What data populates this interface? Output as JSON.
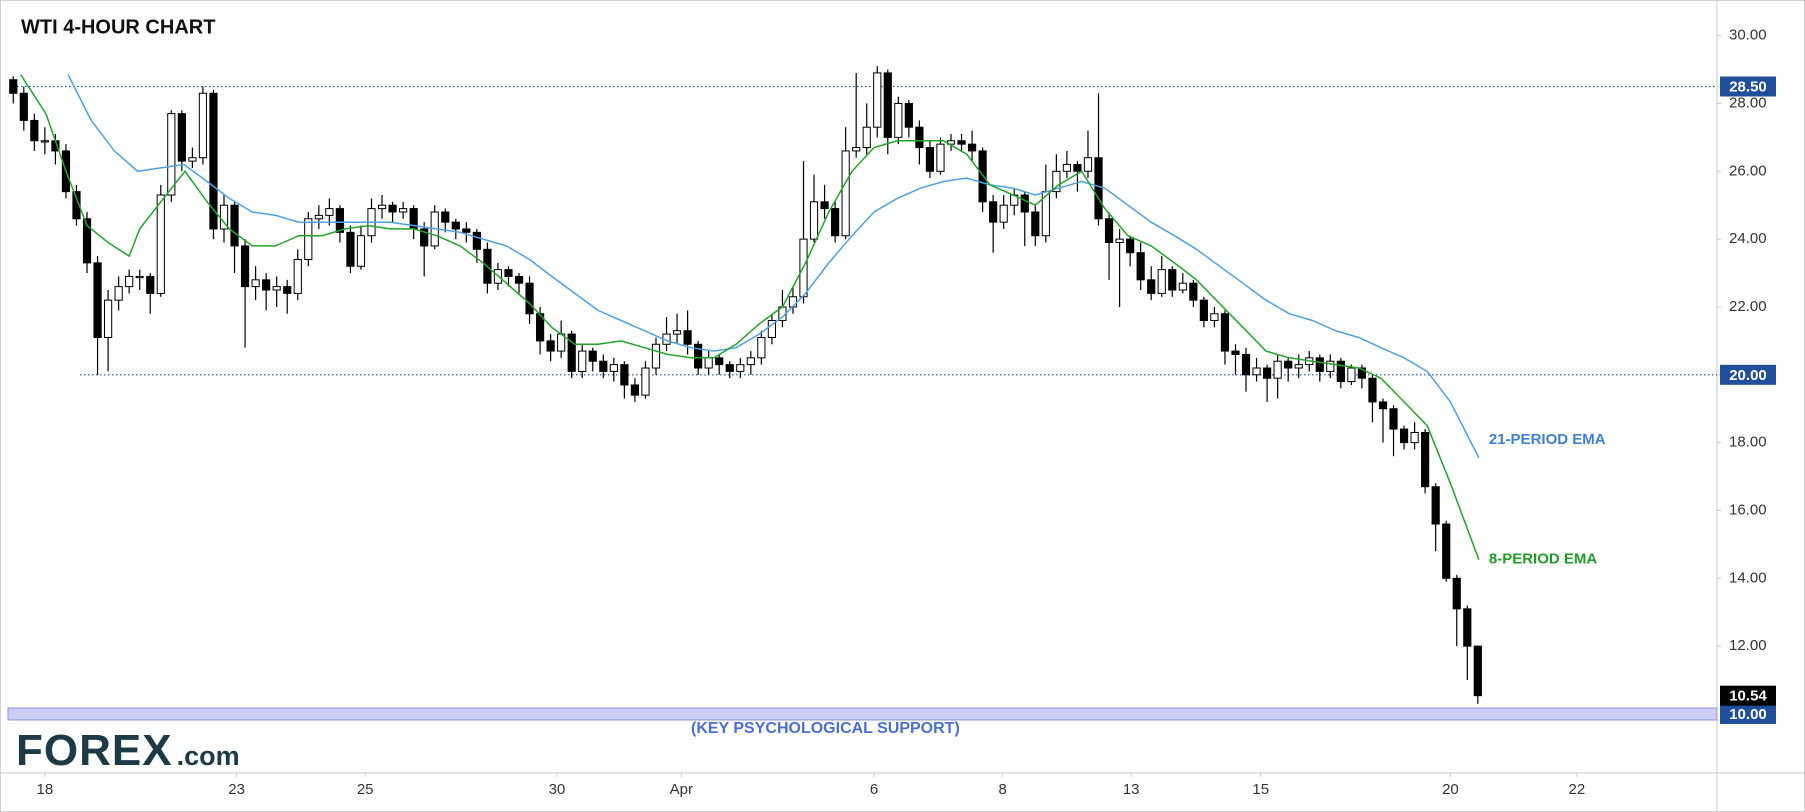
{
  "chart_data": {
    "type": "candlestick",
    "title": "WTI 4-HOUR CHART",
    "logo": "FOREX",
    "logo_suffix": ".com",
    "up_color": "#ffffff",
    "down_color": "#000000",
    "grid": false,
    "xlim": [
      -0.5,
      161.7
    ],
    "ylim": [
      8.26,
      31.05
    ],
    "xticks": [
      {
        "value": 3,
        "label": "18"
      },
      {
        "value": 21.2,
        "label": "23"
      },
      {
        "value": 33.4,
        "label": "25"
      },
      {
        "value": 51.6,
        "label": "30"
      },
      {
        "value": 63.4,
        "label": "Apr"
      },
      {
        "value": 81.7,
        "label": "6"
      },
      {
        "value": 93.9,
        "label": "8"
      },
      {
        "value": 106.1,
        "label": "13"
      },
      {
        "value": 118.4,
        "label": "15"
      },
      {
        "value": 136.4,
        "label": "20"
      },
      {
        "value": 148.4,
        "label": "22"
      }
    ],
    "yticks": [
      {
        "value": 12,
        "label": "12.00"
      },
      {
        "value": 14,
        "label": "14.00"
      },
      {
        "value": 16,
        "label": "16.00"
      },
      {
        "value": 18,
        "label": "18.00"
      },
      {
        "value": 20,
        "label": "20.00"
      },
      {
        "value": 22,
        "label": "22.00"
      },
      {
        "value": 24,
        "label": "24.00"
      },
      {
        "value": 26,
        "label": "26.00"
      },
      {
        "value": 28,
        "label": "28.00"
      },
      {
        "value": 30,
        "label": "30.00"
      }
    ],
    "levels": [
      {
        "value": 28.5,
        "label": "28.50"
      },
      {
        "value": 20,
        "label": "20.00"
      }
    ],
    "level_color": "#1f4e9b",
    "support": {
      "value": 10,
      "label": "10.00",
      "annotation": "(KEY PSYCHOLOGICAL SUPPORT)"
    },
    "last_price": {
      "value": 10.54,
      "label": "10.54"
    },
    "candles": {
      "open": [
        28.7,
        28.3,
        27.5,
        26.9,
        26.9,
        26.6,
        25.4,
        24.6,
        23.3,
        21.1,
        22.2,
        22.6,
        22.9,
        22.9,
        22.4,
        25.3,
        27.7,
        26.3,
        26.4,
        28.3,
        24.3,
        25.0,
        23.8,
        22.6,
        22.8,
        22.5,
        22.6,
        22.4,
        23.4,
        24.6,
        24.7,
        24.9,
        24.2,
        23.2,
        24.1,
        24.9,
        25.0,
        24.8,
        24.9,
        24.3,
        23.8,
        24.8,
        24.5,
        24.3,
        24.2,
        23.7,
        22.7,
        23.1,
        22.9,
        22.7,
        21.8,
        21.0,
        20.7,
        21.2,
        20.1,
        20.7,
        20.4,
        20.1,
        20.3,
        19.7,
        19.4,
        20.2,
        20.9,
        21.2,
        21.3,
        20.9,
        20.2,
        20.5,
        20.3,
        20.1,
        20.3,
        20.5,
        21.1,
        21.6,
        22.0,
        22.3,
        24.0,
        25.1,
        24.9,
        24.1,
        26.6,
        26.7,
        27.3,
        28.9,
        27.0,
        28.0,
        27.3,
        26.7,
        26.0,
        26.8,
        26.9,
        26.8,
        26.6,
        25.1,
        24.5,
        25.0,
        25.3,
        24.8,
        24.1,
        25.4,
        26.0,
        26.2,
        26.0,
        26.4,
        24.6,
        23.9,
        24.0,
        23.6,
        22.8,
        22.4,
        23.1,
        22.5,
        22.7,
        22.2,
        21.6,
        21.8,
        20.7,
        20.6,
        20.0,
        20.2,
        19.9,
        20.4,
        20.2,
        20.3,
        20.5,
        20.1,
        20.4,
        19.8,
        20.2,
        19.9,
        19.2,
        19.0,
        18.4,
        18.0,
        18.3,
        16.7,
        15.6,
        14.0,
        13.1,
        12.0
      ],
      "high": [
        28.8,
        28.5,
        27.7,
        27.3,
        27.1,
        26.8,
        25.6,
        24.8,
        23.5,
        22.5,
        22.9,
        23.1,
        23.1,
        23.0,
        25.6,
        27.8,
        27.8,
        26.7,
        28.5,
        28.4,
        25.3,
        25.1,
        24.0,
        23.2,
        23.0,
        22.9,
        22.8,
        23.7,
        24.8,
        25.0,
        25.2,
        25.0,
        24.4,
        24.4,
        25.2,
        25.3,
        25.1,
        25.1,
        25.0,
        24.5,
        25.0,
        24.9,
        24.6,
        24.5,
        24.3,
        23.9,
        23.3,
        23.2,
        23.0,
        22.9,
        22.0,
        21.2,
        21.6,
        21.3,
        20.9,
        20.8,
        20.6,
        20.5,
        20.4,
        19.9,
        20.4,
        21.1,
        21.7,
        21.8,
        21.9,
        21.0,
        20.7,
        20.6,
        20.4,
        20.5,
        20.7,
        21.3,
        21.8,
        22.5,
        22.6,
        26.3,
        25.9,
        25.6,
        25.1,
        27.3,
        28.9,
        28.0,
        29.1,
        29.0,
        28.2,
        28.1,
        27.5,
        26.9,
        27.0,
        27.1,
        27.1,
        27.2,
        26.7,
        25.3,
        25.3,
        25.5,
        25.4,
        25.0,
        26.2,
        26.5,
        26.6,
        26.3,
        27.2,
        28.3,
        24.8,
        24.3,
        24.1,
        23.9,
        23.2,
        23.5,
        23.2,
        23.0,
        22.8,
        22.3,
        22.0,
        21.9,
        20.9,
        20.8,
        20.5,
        20.3,
        20.6,
        20.5,
        20.6,
        20.7,
        20.6,
        20.6,
        20.5,
        20.3,
        20.3,
        20.0,
        19.3,
        19.1,
        18.5,
        18.6,
        18.4,
        16.8,
        15.7,
        14.1,
        13.2,
        12.0
      ],
      "low": [
        28.0,
        27.2,
        26.6,
        26.5,
        26.2,
        25.2,
        24.4,
        23.0,
        20.0,
        20.1,
        21.9,
        22.4,
        22.5,
        21.8,
        22.3,
        25.1,
        26.0,
        26.1,
        26.2,
        24.0,
        23.9,
        23.0,
        20.8,
        22.2,
        21.9,
        22.0,
        21.8,
        22.2,
        23.2,
        24.3,
        24.4,
        23.9,
        23.0,
        23.1,
        23.9,
        24.6,
        24.5,
        24.6,
        24.0,
        22.9,
        23.7,
        24.2,
        24.0,
        23.9,
        23.3,
        22.4,
        22.5,
        22.6,
        22.4,
        21.5,
        20.6,
        20.4,
        20.5,
        19.9,
        19.9,
        20.1,
        19.9,
        19.8,
        19.3,
        19.2,
        19.3,
        20.0,
        20.7,
        20.9,
        20.6,
        20.0,
        20.0,
        20.0,
        19.9,
        19.9,
        20.0,
        20.3,
        20.9,
        21.4,
        21.8,
        22.1,
        23.9,
        24.6,
        23.9,
        24.0,
        26.4,
        26.5,
        27.0,
        26.5,
        26.8,
        27.0,
        26.2,
        25.8,
        25.9,
        26.6,
        26.6,
        26.3,
        24.8,
        23.6,
        24.3,
        24.7,
        23.8,
        23.8,
        23.9,
        25.2,
        25.8,
        25.4,
        25.8,
        24.4,
        22.8,
        22.0,
        23.2,
        22.5,
        22.2,
        22.3,
        22.3,
        22.4,
        22.0,
        21.4,
        21.4,
        20.3,
        20.0,
        19.5,
        19.8,
        19.2,
        19.3,
        19.8,
        19.9,
        20.1,
        19.8,
        19.9,
        19.6,
        19.7,
        19.6,
        18.6,
        18.0,
        17.6,
        17.8,
        17.8,
        16.5,
        14.8,
        13.9,
        12.0,
        11.0,
        10.3
      ],
      "close": [
        28.3,
        27.5,
        26.9,
        26.9,
        26.6,
        25.4,
        24.6,
        23.3,
        21.1,
        22.2,
        22.6,
        22.9,
        22.9,
        22.4,
        25.3,
        27.7,
        26.3,
        26.4,
        28.3,
        24.3,
        25.0,
        23.8,
        22.6,
        22.8,
        22.5,
        22.6,
        22.4,
        23.4,
        24.6,
        24.7,
        24.9,
        24.2,
        23.2,
        24.1,
        24.9,
        25.0,
        24.8,
        24.9,
        24.3,
        23.8,
        24.8,
        24.5,
        24.3,
        24.2,
        23.7,
        22.7,
        23.1,
        22.9,
        22.7,
        21.8,
        21.0,
        20.7,
        21.2,
        20.1,
        20.7,
        20.4,
        20.1,
        20.3,
        19.7,
        19.4,
        20.2,
        20.9,
        21.2,
        21.3,
        20.9,
        20.2,
        20.5,
        20.3,
        20.1,
        20.3,
        20.5,
        21.1,
        21.6,
        22.0,
        22.3,
        24.0,
        25.1,
        24.9,
        24.1,
        26.6,
        26.7,
        27.3,
        28.9,
        27.0,
        28.0,
        27.3,
        26.7,
        26.0,
        26.8,
        26.9,
        26.8,
        26.6,
        25.1,
        24.5,
        25.0,
        25.3,
        24.8,
        24.1,
        25.4,
        26.0,
        26.2,
        26.0,
        26.4,
        24.6,
        23.9,
        24.0,
        23.6,
        22.8,
        22.4,
        23.1,
        22.5,
        22.7,
        22.2,
        21.6,
        21.8,
        20.7,
        20.6,
        20.0,
        20.2,
        19.9,
        20.4,
        20.2,
        20.3,
        20.5,
        20.1,
        20.4,
        19.8,
        20.2,
        19.9,
        19.2,
        19.0,
        18.4,
        18.0,
        18.3,
        16.7,
        15.6,
        14.0,
        13.1,
        12.0,
        10.54
      ]
    },
    "series": [
      {
        "name": "21-PERIOD EMA",
        "color": "#4ea2e3",
        "label_color": "#3f7fd6",
        "x": [
          5.2,
          7.4,
          9.6,
          11.8,
          14.0,
          16.2,
          18.4,
          20.5,
          22.7,
          24.9,
          27.1,
          29.3,
          31.5,
          33.7,
          35.8,
          38.0,
          40.2,
          42.4,
          44.6,
          46.8,
          49.0,
          51.1,
          53.3,
          55.5,
          57.7,
          59.9,
          62.1,
          64.3,
          66.5,
          68.6,
          70.8,
          73.0,
          75.2,
          77.4,
          79.6,
          81.7,
          83.9,
          86.1,
          88.3,
          90.5,
          92.7,
          94.9,
          97.0,
          99.2,
          101.4,
          103.6,
          105.8,
          108.0,
          110.2,
          112.3,
          114.5,
          116.7,
          118.9,
          121.1,
          123.3,
          125.5,
          127.7,
          129.8,
          132.0,
          134.2,
          136.4,
          139.1
        ],
        "values": [
          28.85,
          27.5,
          26.6,
          26.0,
          26.1,
          26.2,
          25.7,
          25.2,
          24.8,
          24.7,
          24.5,
          24.5,
          24.5,
          24.5,
          24.5,
          24.4,
          24.3,
          24.2,
          24.0,
          23.8,
          23.4,
          22.9,
          22.4,
          21.9,
          21.6,
          21.3,
          21.0,
          20.8,
          20.7,
          20.8,
          21.2,
          21.7,
          22.4,
          23.3,
          24.1,
          24.8,
          25.2,
          25.5,
          25.7,
          25.8,
          25.6,
          25.5,
          25.3,
          25.5,
          25.7,
          25.5,
          25.0,
          24.5,
          24.1,
          23.7,
          23.2,
          22.7,
          22.2,
          21.8,
          21.6,
          21.3,
          21.1,
          20.8,
          20.5,
          20.1,
          19.2,
          17.55
        ]
      },
      {
        "name": "8-PERIOD EMA",
        "color": "#22a62a",
        "label_color": "#1f9e27",
        "x": [
          0.7,
          3.1,
          5.0,
          7.0,
          9.0,
          11.0,
          12.0,
          14.0,
          16.3,
          18.4,
          20.5,
          22.7,
          24.9,
          27.1,
          29.3,
          31.5,
          33.7,
          35.8,
          38.0,
          40.2,
          42.4,
          44.6,
          46.8,
          49.0,
          51.1,
          53.3,
          55.5,
          57.7,
          59.9,
          62.1,
          64.3,
          66.5,
          68.6,
          70.8,
          73.0,
          75.2,
          77.4,
          79.6,
          81.7,
          83.9,
          86.1,
          88.3,
          90.5,
          92.7,
          94.9,
          97.0,
          99.2,
          101.4,
          103.6,
          105.8,
          108.0,
          110.2,
          112.3,
          114.5,
          116.7,
          118.9,
          121.1,
          123.3,
          125.5,
          127.7,
          129.8,
          132.0,
          134.2,
          136.4,
          139.1
        ],
        "values": [
          28.85,
          27.7,
          26.0,
          24.4,
          23.9,
          23.5,
          24.3,
          25.1,
          26.0,
          25.1,
          24.3,
          23.8,
          23.8,
          24.1,
          24.1,
          24.3,
          24.4,
          24.3,
          24.3,
          24.1,
          23.8,
          23.3,
          22.7,
          22.1,
          21.4,
          20.9,
          20.9,
          21.0,
          20.8,
          20.6,
          20.5,
          20.5,
          20.9,
          21.5,
          22.0,
          23.3,
          24.8,
          26.0,
          26.7,
          26.9,
          26.9,
          26.9,
          26.5,
          25.6,
          25.3,
          25.0,
          25.6,
          26.0,
          24.9,
          24.1,
          23.8,
          23.3,
          22.8,
          22.1,
          21.4,
          20.7,
          20.5,
          20.4,
          20.3,
          20.2,
          19.9,
          19.2,
          18.5,
          16.8,
          14.55
        ]
      }
    ]
  }
}
